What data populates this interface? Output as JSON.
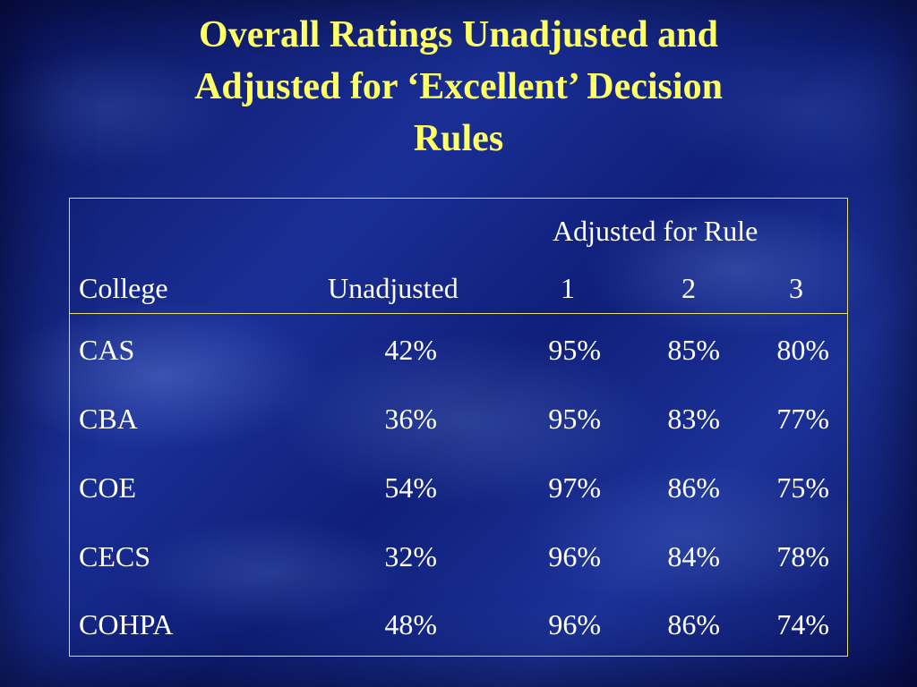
{
  "slide": {
    "title": "Overall Ratings Unadjusted and\nAdjusted for ‘Excellent’ Decision\nRules"
  },
  "table": {
    "group_header": "Adjusted for Rule",
    "columns": {
      "college": "College",
      "unadjusted": "Unadjusted",
      "rule1": "1",
      "rule2": "2",
      "rule3": "3"
    },
    "rows": [
      {
        "college": "CAS",
        "unadjusted": "42%",
        "rule1": "95%",
        "rule2": "85%",
        "rule3": "80%"
      },
      {
        "college": "CBA",
        "unadjusted": "36%",
        "rule1": "95%",
        "rule2": "83%",
        "rule3": "77%"
      },
      {
        "college": "COE",
        "unadjusted": "54%",
        "rule1": "97%",
        "rule2": "86%",
        "rule3": "75%"
      },
      {
        "college": "CECS",
        "unadjusted": "32%",
        "rule1": "96%",
        "rule2": "84%",
        "rule3": "78%"
      },
      {
        "college": "COHPA",
        "unadjusted": "48%",
        "rule1": "96%",
        "rule2": "86%",
        "rule3": "74%"
      }
    ]
  },
  "colors": {
    "title": "#ffff66",
    "table_text": "#ffffff",
    "border": "#e8e070",
    "background": "#14288a"
  }
}
